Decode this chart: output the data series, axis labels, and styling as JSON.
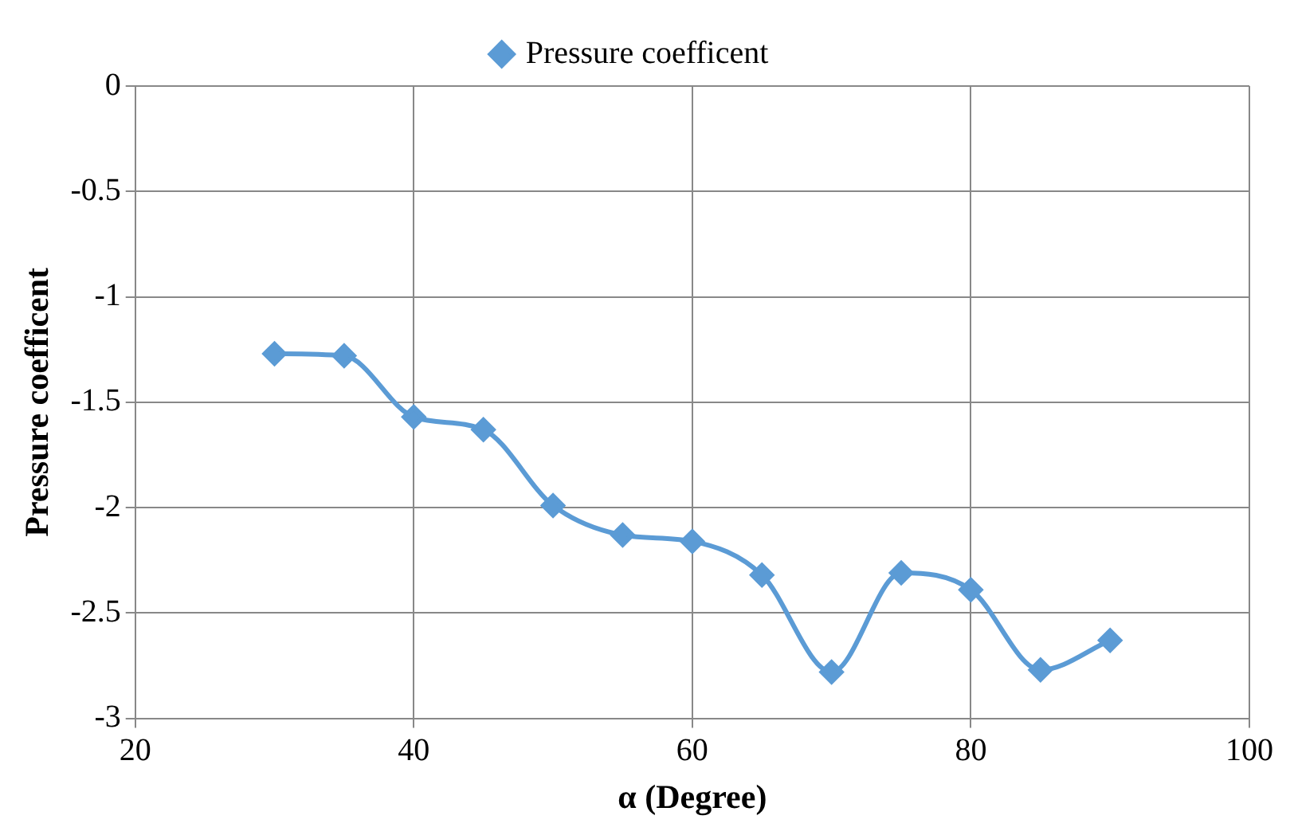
{
  "chart_data": {
    "type": "line",
    "xlabel": "α (Degree)",
    "ylabel": "Pressure coefficent",
    "x": [
      30,
      35,
      40,
      45,
      50,
      55,
      60,
      65,
      70,
      75,
      80,
      85,
      90
    ],
    "series": [
      {
        "name": "Pressure coefficent",
        "color": "#5b9bd5",
        "values": [
          -1.27,
          -1.28,
          -1.57,
          -1.63,
          -1.99,
          -2.13,
          -2.16,
          -2.32,
          -2.78,
          -2.31,
          -2.39,
          -2.77,
          -2.63
        ]
      }
    ],
    "xlim": [
      20,
      100
    ],
    "xticks": [
      20,
      40,
      60,
      80,
      100
    ],
    "ylim": [
      -3,
      0
    ],
    "yticks": [
      0,
      -0.5,
      -1,
      -1.5,
      -2,
      -2.5,
      -3
    ],
    "grid": true,
    "legend": "top",
    "marker": "diamond",
    "line_style": "solid"
  }
}
